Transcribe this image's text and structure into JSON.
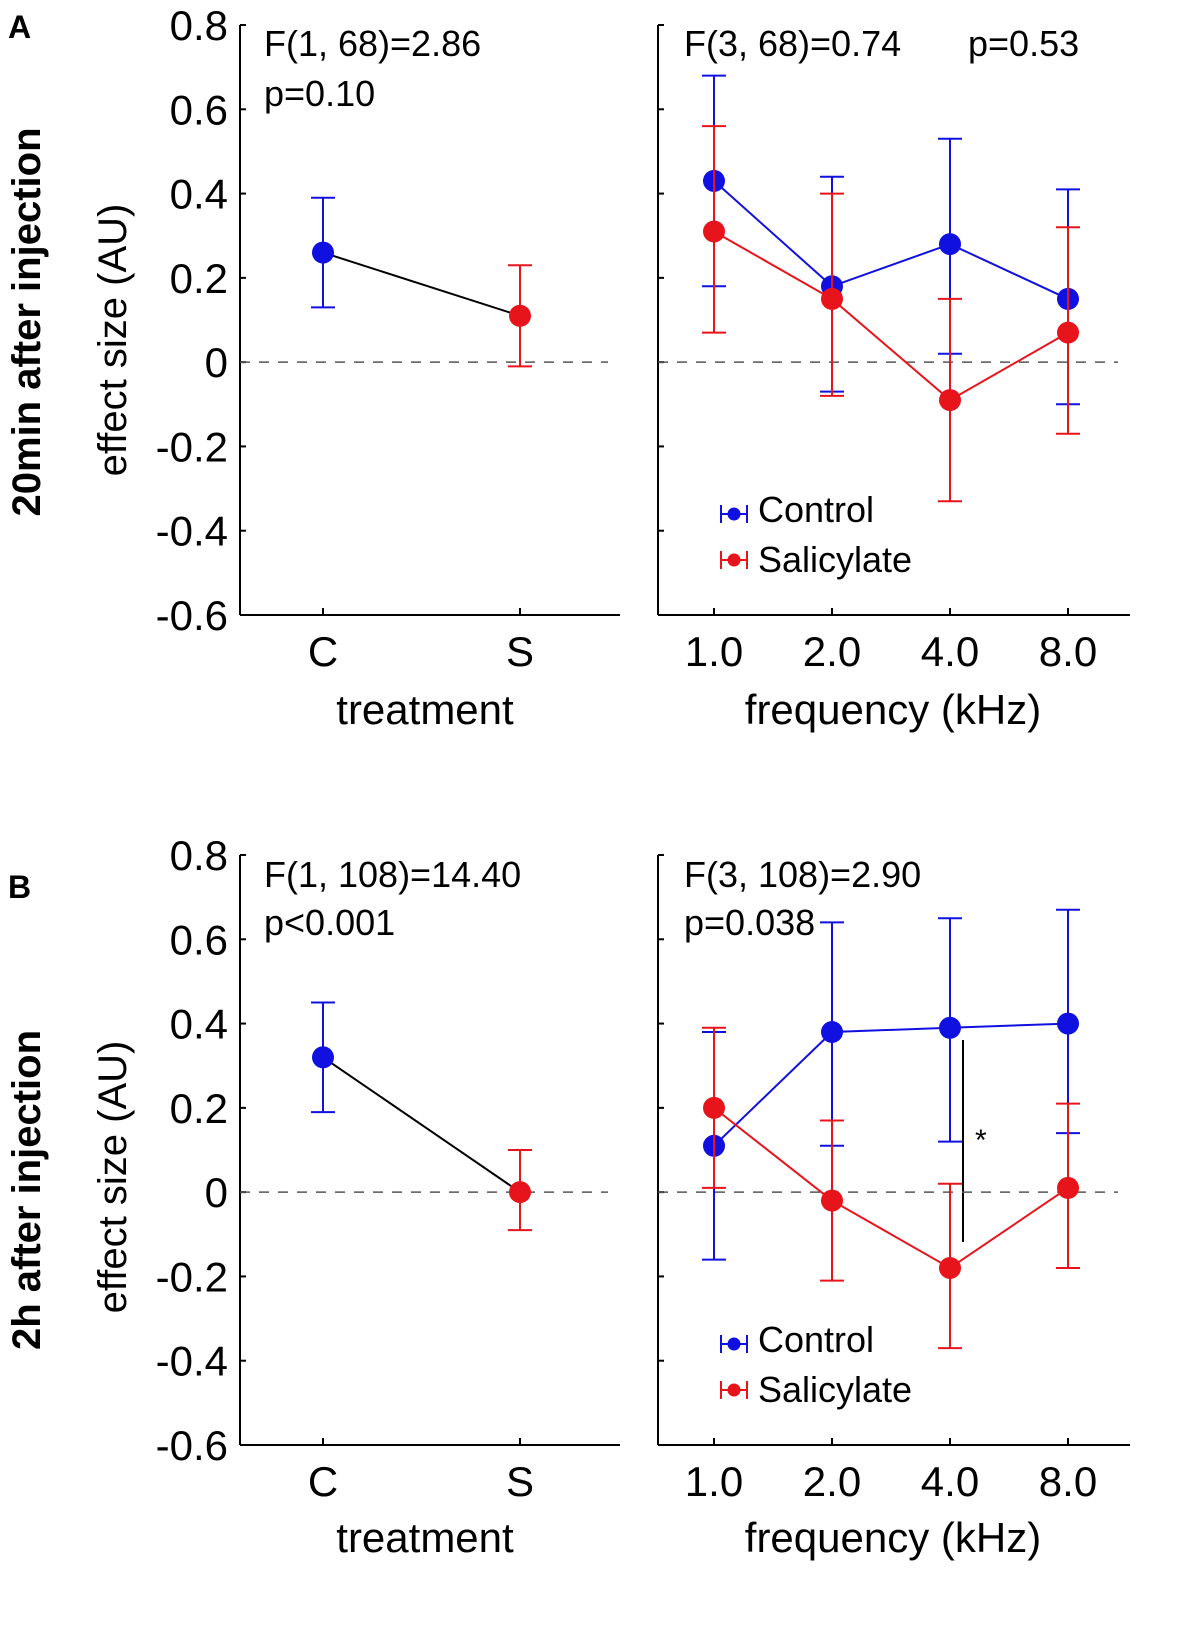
{
  "colors": {
    "control": "#1010e0",
    "salicylate": "#e8141c",
    "black": "#000000",
    "significant": "#e8141c"
  },
  "y_axis_label": "effect size (AU)",
  "chart_data": [
    {
      "id": "A",
      "panel_label": "A",
      "row_label": "20min after injection",
      "row_label_color": "#1010e0",
      "yticks": [
        "0.8",
        "0.6",
        "0.4",
        "0.2",
        "0",
        "-0.2",
        "-0.4",
        "-0.6"
      ],
      "ylim": [
        -0.6,
        0.8
      ],
      "left": {
        "type": "line",
        "xlabel": "treatment",
        "categories": [
          "C",
          "S"
        ],
        "values": [
          0.26,
          0.11
        ],
        "errors": [
          [
            0.13,
            0.39
          ],
          [
            -0.01,
            0.23
          ]
        ],
        "stat_line1": "F(1, 68)=2.86",
        "stat_line2": "p=0.10",
        "stat_line2_significant": false
      },
      "right": {
        "type": "line",
        "xlabel": "frequency (kHz)",
        "categories": [
          "1.0",
          "2.0",
          "4.0",
          "8.0"
        ],
        "series": [
          {
            "name": "Control",
            "values": [
              0.43,
              0.18,
              0.28,
              0.15
            ],
            "errors": [
              [
                0.18,
                0.68
              ],
              [
                -0.07,
                0.44
              ],
              [
                0.02,
                0.53
              ],
              [
                -0.1,
                0.41
              ]
            ]
          },
          {
            "name": "Salicylate",
            "values": [
              0.31,
              0.15,
              -0.09,
              0.07
            ],
            "errors": [
              [
                0.07,
                0.56
              ],
              [
                -0.08,
                0.4
              ],
              [
                -0.33,
                0.15
              ],
              [
                -0.17,
                0.32
              ]
            ]
          }
        ],
        "stat_line1": "F(3, 68)=0.74",
        "stat_extra": "p=0.53",
        "stat_line2": "",
        "stat_line2_significant": false,
        "significance_marker": ""
      }
    },
    {
      "id": "B",
      "panel_label": "B",
      "row_label": "2h after injection",
      "row_label_color": "#e8141c",
      "yticks": [
        "0.8",
        "0.6",
        "0.4",
        "0.2",
        "0",
        "-0.2",
        "-0.4",
        "-0.6"
      ],
      "ylim": [
        -0.6,
        0.8
      ],
      "left": {
        "type": "line",
        "xlabel": "treatment",
        "categories": [
          "C",
          "S"
        ],
        "values": [
          0.32,
          0.0
        ],
        "errors": [
          [
            0.19,
            0.45
          ],
          [
            -0.09,
            0.1
          ]
        ],
        "stat_line1": "F(1, 108)=14.40",
        "stat_line2": "p<0.001",
        "stat_line2_significant": true
      },
      "right": {
        "type": "line",
        "xlabel": "frequency (kHz)",
        "categories": [
          "1.0",
          "2.0",
          "4.0",
          "8.0"
        ],
        "series": [
          {
            "name": "Control",
            "values": [
              0.11,
              0.38,
              0.39,
              0.4
            ],
            "errors": [
              [
                -0.16,
                0.38
              ],
              [
                0.11,
                0.64
              ],
              [
                0.12,
                0.65
              ],
              [
                0.14,
                0.67
              ]
            ]
          },
          {
            "name": "Salicylate",
            "values": [
              0.2,
              -0.02,
              -0.18,
              0.01
            ],
            "errors": [
              [
                0.01,
                0.39
              ],
              [
                -0.21,
                0.17
              ],
              [
                -0.37,
                0.02
              ],
              [
                -0.18,
                0.21
              ]
            ]
          }
        ],
        "stat_line1": "F(3, 108)=2.90",
        "stat_extra": "",
        "stat_line2": "p=0.038",
        "stat_line2_significant": true,
        "significance_marker": "*"
      }
    }
  ]
}
